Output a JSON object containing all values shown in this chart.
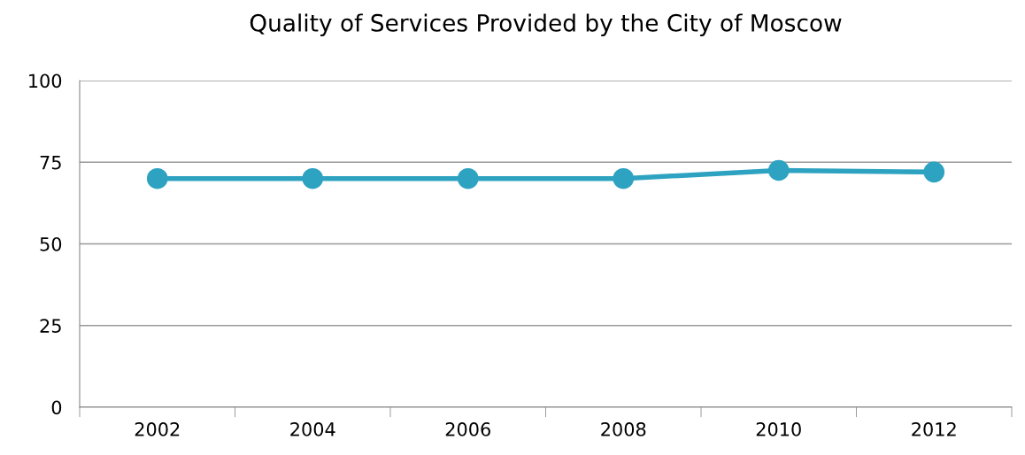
{
  "chart_data": {
    "type": "line",
    "title": "Quality of Services Provided by the City of Moscow",
    "categories": [
      "2002",
      "2004",
      "2006",
      "2008",
      "2010",
      "2012"
    ],
    "series": [
      {
        "color": "#2ea3c1",
        "values": [
          70,
          70,
          70,
          70,
          72.5,
          72
        ]
      }
    ],
    "ylim": [
      0,
      100
    ],
    "yticks": [
      0,
      25,
      50,
      75,
      100
    ],
    "grid": "y",
    "marker": "circle",
    "line_style": "solid"
  }
}
